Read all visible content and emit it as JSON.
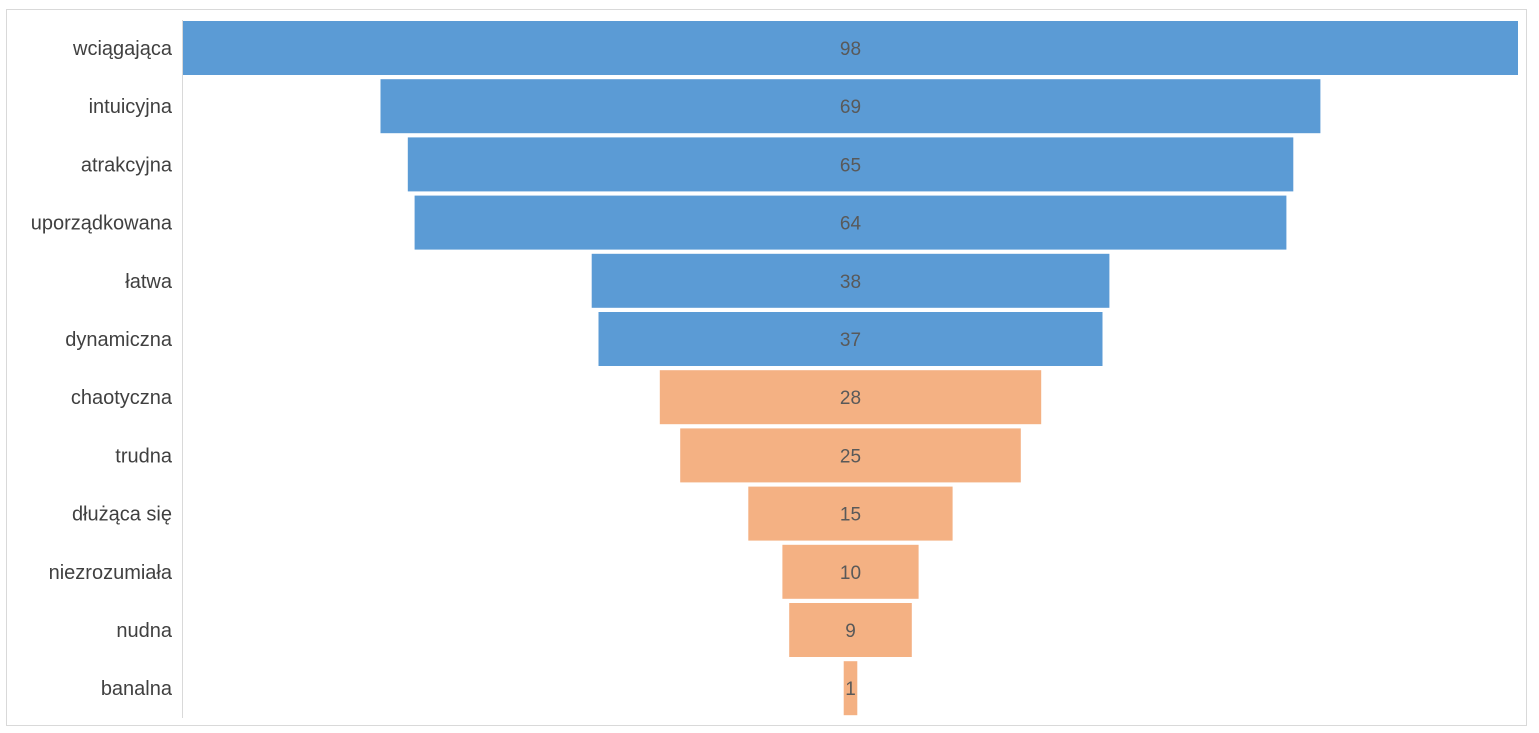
{
  "chart_data": {
    "type": "bar",
    "subtype": "funnel",
    "title": "",
    "xlabel": "",
    "ylabel": "",
    "grid": false,
    "legend": "none",
    "categories": [
      "wciągająca",
      "intuicyjna",
      "atrakcyjna",
      "uporządkowana",
      "łatwa",
      "dynamiczna",
      "chaotyczna",
      "trudna",
      "dłużąca się",
      "niezrozumiała",
      "nudna",
      "banalna"
    ],
    "values": [
      98,
      69,
      65,
      64,
      38,
      37,
      28,
      25,
      15,
      10,
      9,
      1
    ],
    "value_labels": [
      "98",
      "69",
      "65",
      "64",
      "38",
      "37",
      "28",
      "25",
      "15",
      "10",
      "9",
      "1"
    ],
    "colors": {
      "positive": "#5b9bd5",
      "negative": "#f4b183"
    },
    "bar_colors": [
      "#5b9bd5",
      "#5b9bd5",
      "#5b9bd5",
      "#5b9bd5",
      "#5b9bd5",
      "#5b9bd5",
      "#f4b183",
      "#f4b183",
      "#f4b183",
      "#f4b183",
      "#f4b183",
      "#f4b183"
    ]
  }
}
